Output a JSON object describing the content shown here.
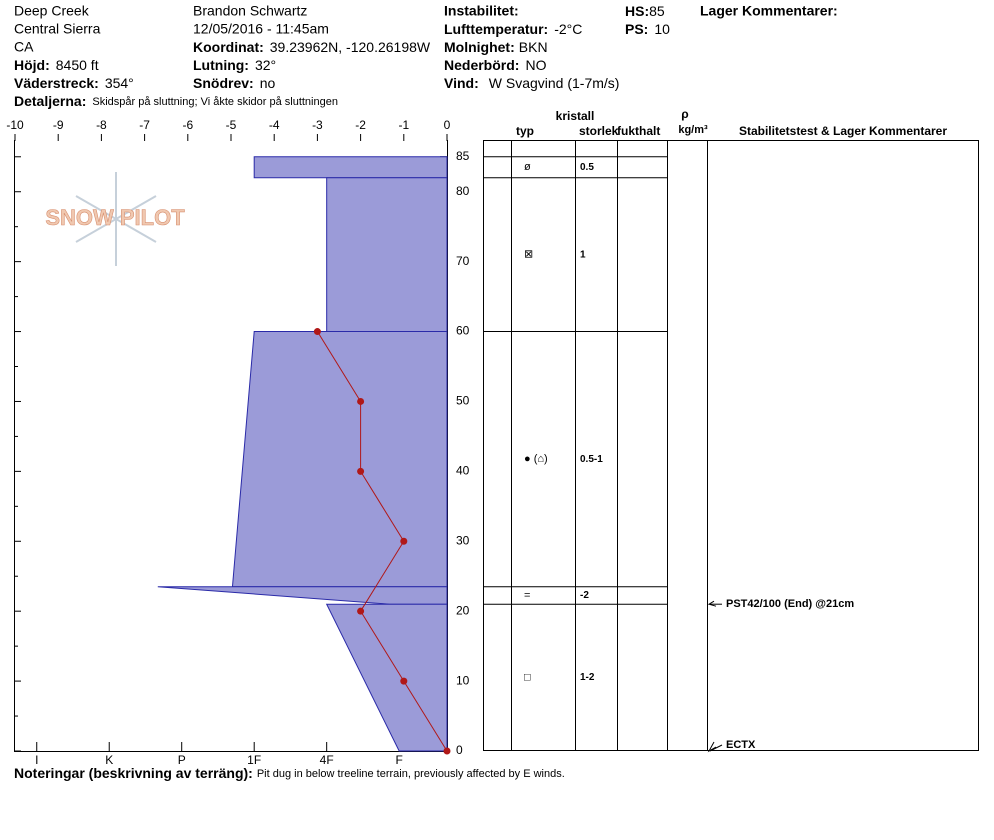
{
  "header": {
    "location": [
      "Deep Creek",
      "Central Sierra",
      "CA"
    ],
    "observer": "Brandon Schwartz",
    "datetime": "12/05/2016 - 11:45am",
    "instability_label": "Instabilitet:",
    "layer_comments_label": "Lager Kommentarer:",
    "fields": [
      {
        "label": "Höjd:",
        "value": "8450 ft"
      },
      {
        "label": "Väderstreck:",
        "value": "354°"
      },
      {
        "label": "Detaljerna:",
        "value": "Skidspår på sluttning;  Vi åkte skidor på sluttningen"
      },
      {
        "label": "Koordinat:",
        "value": "39.23962N, -120.26198W"
      },
      {
        "label": "Lutning:",
        "value": "32°"
      },
      {
        "label": "Snödrev:",
        "value": "no"
      },
      {
        "label": "Lufttemperatur:",
        "value": "-2°C"
      },
      {
        "label": "Molnighet:",
        "value": "BKN"
      },
      {
        "label": "Nederbörd:",
        "value": "NO"
      },
      {
        "label": "Vind:",
        "value": "W Svagvind (1-7m/s)"
      },
      {
        "label": "HS:",
        "value": "85"
      },
      {
        "label": "PS:",
        "value": "10"
      }
    ]
  },
  "logo": "SNOW PILOT",
  "chart_data": {
    "type": "snow-profile",
    "xlim": [
      -10,
      0
    ],
    "xticks": [
      -10,
      -9,
      -8,
      -7,
      -6,
      -5,
      -4,
      -3,
      -2,
      -1,
      0
    ],
    "ylim": [
      0,
      87.4
    ],
    "yticks": [
      0,
      10,
      20,
      30,
      40,
      50,
      60,
      70,
      80,
      85
    ],
    "yminor": [
      5,
      15,
      25,
      35,
      45,
      55,
      65,
      75
    ],
    "hlim": [
      0.34,
      6.3
    ],
    "hardness_ticks": [
      {
        "value": 1,
        "label": "F"
      },
      {
        "value": 2,
        "label": "4F"
      },
      {
        "value": 3,
        "label": "1F"
      },
      {
        "value": 4,
        "label": "P"
      },
      {
        "value": 5,
        "label": "K"
      },
      {
        "value": 6,
        "label": "I"
      }
    ],
    "hardness_color": "#9b9bd8",
    "temperature": {
      "color": "#b01818",
      "heights": [
        60,
        50,
        40,
        30,
        20,
        10,
        0
      ],
      "values": [
        -3,
        -2,
        -2,
        -1,
        -2,
        -1,
        0
      ]
    },
    "layers": [
      {
        "top": 85,
        "bottom": 82,
        "hardness_top": 3,
        "hardness_bottom": 3,
        "grain_type": "ø",
        "grain_size": "0.5"
      },
      {
        "top": 82,
        "bottom": 60,
        "hardness_top": 2,
        "hardness_bottom": 2,
        "grain_type": "⊠",
        "grain_size": "1"
      },
      {
        "top": 60,
        "bottom": 23.5,
        "hardness_top": 3,
        "hardness_bottom": 3.3,
        "grain_type": "●  (⌂)",
        "grain_size": "0.5-1"
      },
      {
        "top": 23.5,
        "bottom": 21,
        "hardness_top": 4.33,
        "hardness_bottom": 1.13,
        "grain_type": "=",
        "grain_size": "-2"
      },
      {
        "top": 21,
        "bottom": 0,
        "hardness_top": 2,
        "hardness_bottom": 1,
        "grain_type": "□",
        "grain_size": "1-2"
      }
    ],
    "tests": [
      {
        "height": 21,
        "label": "PST42/100 (End) @21cm"
      },
      {
        "height": 0,
        "label": "ECTX"
      }
    ],
    "columns": {
      "crystal": "kristall",
      "type": "typ",
      "size": "storlek",
      "moisture": "fukthalt",
      "rho": "ρ",
      "density": "kg/m³",
      "comments": "Stabilitetstest & Lager Kommentarer"
    }
  },
  "notes": {
    "label": "Noteringar (beskrivning av terräng):",
    "text": "Pit dug in below treeline terrain, previously affected by E winds."
  }
}
